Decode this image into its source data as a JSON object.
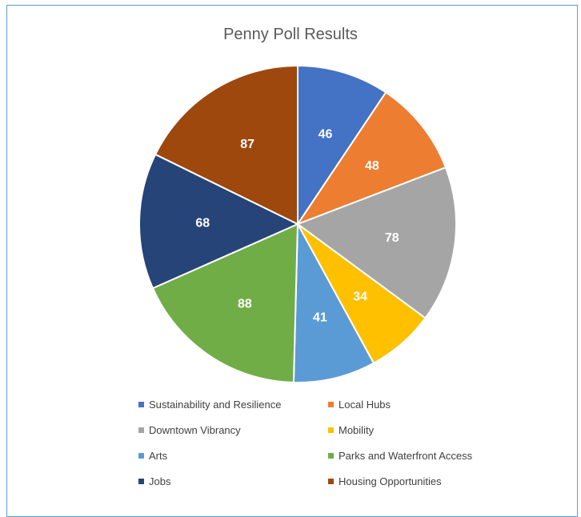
{
  "chart_data": {
    "type": "pie",
    "title": "Penny Poll Results",
    "categories": [
      "Sustainability and Resilience",
      "Local Hubs",
      "Downtown Vibrancy",
      "Mobility",
      "Arts",
      "Parks and Waterfront Access",
      "Jobs",
      "Housing Opportunities"
    ],
    "values": [
      46,
      48,
      78,
      34,
      41,
      88,
      68,
      87
    ],
    "colors": [
      "#4472c4",
      "#ed7d31",
      "#a5a5a5",
      "#ffc000",
      "#5b9bd5",
      "#70ad47",
      "#264478",
      "#9e480e"
    ],
    "legend_position": "bottom",
    "data_labels": true
  }
}
